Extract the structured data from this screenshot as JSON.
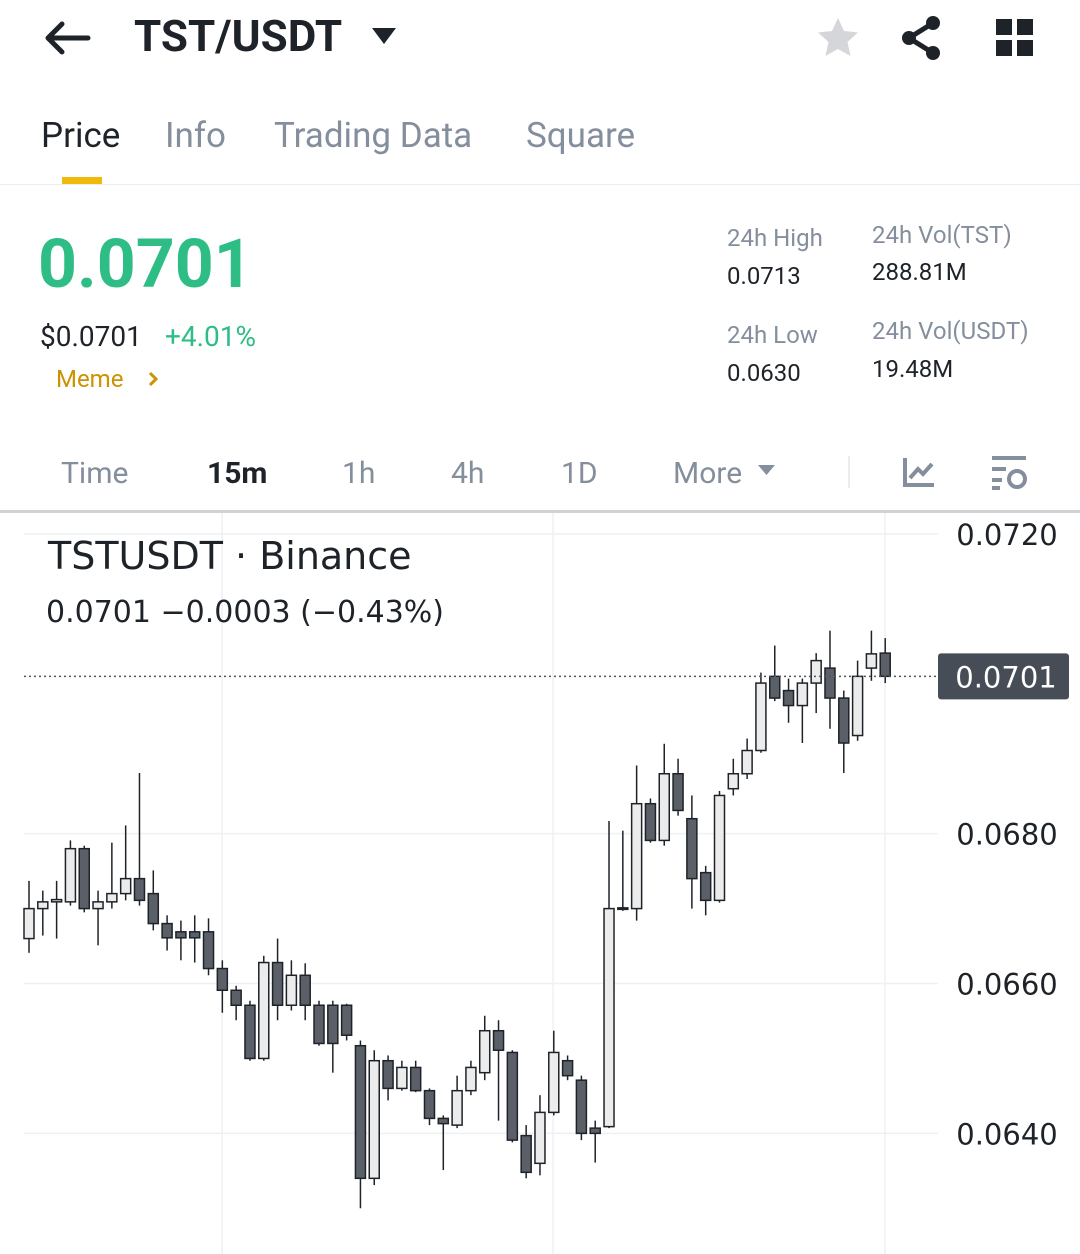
{
  "header": {
    "pair": "TST/USDT"
  },
  "tabs": [
    "Price",
    "Info",
    "Trading Data",
    "Square"
  ],
  "price": {
    "last": "0.0701",
    "usd": "$0.0701",
    "change": "+4.01%",
    "tag": "Meme"
  },
  "stats": [
    {
      "label": "24h High",
      "value": "0.0713"
    },
    {
      "label": "24h Vol(TST)",
      "value": "288.81M"
    },
    {
      "label": "24h Low",
      "value": "0.0630"
    },
    {
      "label": "24h Vol(USDT)",
      "value": "19.48M"
    }
  ],
  "intervals": [
    "Time",
    "15m",
    "1h",
    "4h",
    "1D",
    "More"
  ],
  "chart_data": {
    "type": "candlestick",
    "title": "TSTUSDT · Binance",
    "subtitle": "0.0701  −0.0003 (−0.43%)",
    "open": [
      0.0666,
      0.067,
      0.06709,
      0.06709,
      0.0678,
      0.067,
      0.06709,
      0.0672,
      0.0674,
      0.0672,
      0.0668,
      0.06669,
      0.06669,
      0.06669,
      0.0662,
      0.06591,
      0.06571,
      0.065,
      0.06628,
      0.06571,
      0.06611,
      0.06571,
      0.06571,
      0.06571,
      0.06517,
      0.0634,
      0.06497,
      0.0646,
      0.06488,
      0.06457,
      0.0642,
      0.06411,
      0.06457,
      0.06481,
      0.06537,
      0.06508,
      0.06397,
      0.0636,
      0.06428,
      0.06497,
      0.06471,
      0.06407,
      0.06409,
      0.067,
      0.067,
      0.0684,
      0.06791,
      0.0688,
      0.0682,
      0.06748,
      0.06711,
      0.0686,
      0.0688,
      0.06911,
      0.0701,
      0.06991,
      0.06971,
      0.07001,
      0.07021,
      0.06981,
      0.06931,
      0.07021,
      0.07041
    ],
    "high": [
      0.06737,
      0.06724,
      0.06737,
      0.06791,
      0.06784,
      0.06724,
      0.06788,
      0.06811,
      0.06881,
      0.06751,
      0.06691,
      0.06684,
      0.06691,
      0.06687,
      0.06631,
      0.06597,
      0.06577,
      0.06637,
      0.0666,
      0.06631,
      0.06627,
      0.06577,
      0.06577,
      0.06573,
      0.06524,
      0.06511,
      0.06504,
      0.06497,
      0.06497,
      0.0646,
      0.06424,
      0.06477,
      0.06497,
      0.06557,
      0.06551,
      0.06511,
      0.06411,
      0.06451,
      0.06537,
      0.06504,
      0.06477,
      0.06417,
      0.06817,
      0.06804,
      0.06891,
      0.06847,
      0.0692,
      0.069,
      0.06851,
      0.06757,
      0.06857,
      0.069,
      0.06927,
      0.07015,
      0.07051,
      0.07007,
      0.07007,
      0.07041,
      0.07071,
      0.06991,
      0.07031,
      0.07071,
      0.07061
    ],
    "low": [
      0.06641,
      0.06664,
      0.0666,
      0.06704,
      0.06695,
      0.06651,
      0.067,
      0.06711,
      0.06704,
      0.06671,
      0.06644,
      0.06631,
      0.06628,
      0.06611,
      0.06561,
      0.06551,
      0.06497,
      0.06497,
      0.06551,
      0.06564,
      0.06551,
      0.06517,
      0.06481,
      0.06524,
      0.063,
      0.06331,
      0.06444,
      0.06457,
      0.06455,
      0.06411,
      0.06351,
      0.06407,
      0.06451,
      0.06471,
      0.06417,
      0.06388,
      0.0634,
      0.06344,
      0.06424,
      0.06471,
      0.06391,
      0.06361,
      0.06407,
      0.06697,
      0.06684,
      0.06788,
      0.06784,
      0.06824,
      0.067,
      0.06691,
      0.06708,
      0.06851,
      0.06873,
      0.06908,
      0.06977,
      0.06948,
      0.06921,
      0.06961,
      0.0694,
      0.06881,
      0.06924,
      0.07004,
      0.07001
    ],
    "close": [
      0.067,
      0.06709,
      0.06712,
      0.0678,
      0.067,
      0.06709,
      0.0672,
      0.0674,
      0.06711,
      0.0668,
      0.06661,
      0.06661,
      0.06661,
      0.0662,
      0.06591,
      0.06571,
      0.065,
      0.06628,
      0.06571,
      0.06611,
      0.06571,
      0.0652,
      0.0652,
      0.06531,
      0.0634,
      0.06497,
      0.0646,
      0.06488,
      0.06457,
      0.0642,
      0.06413,
      0.06457,
      0.06488,
      0.06537,
      0.06511,
      0.06391,
      0.06348,
      0.06428,
      0.06508,
      0.06477,
      0.064,
      0.064,
      0.067,
      0.06701,
      0.0684,
      0.06791,
      0.0688,
      0.06831,
      0.0674,
      0.06711,
      0.06851,
      0.0688,
      0.06911,
      0.07001,
      0.06981,
      0.06971,
      0.07001,
      0.07031,
      0.06981,
      0.06921,
      0.0701,
      0.0704,
      0.0701
    ],
    "up_color": "#ececec",
    "down_color": "#5b5f68",
    "ylim": [
      0.06239,
      0.07228
    ],
    "yticks": [
      {
        "value": 0.072,
        "label": "0.0720"
      },
      {
        "value": 0.068,
        "label": "0.0680"
      },
      {
        "value": 0.066,
        "label": "0.0660"
      },
      {
        "value": 0.064,
        "label": "0.0640"
      }
    ],
    "last_price": 0.0701,
    "grid": true
  }
}
